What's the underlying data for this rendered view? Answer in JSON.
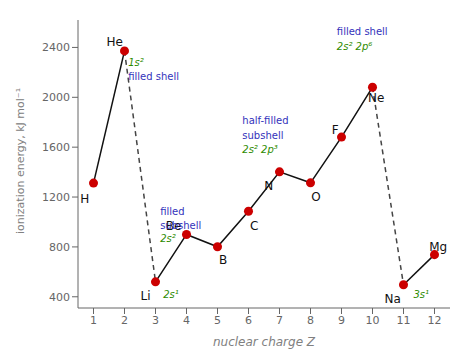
{
  "chart_data": {
    "type": "line",
    "x": [
      1,
      2,
      3,
      4,
      5,
      6,
      7,
      8,
      9,
      10,
      11,
      12
    ],
    "series": [
      {
        "type": "line",
        "line_style": "solid",
        "color": "#111111",
        "values": [
          1312,
          2372,
          null,
          null,
          null,
          null,
          null,
          null,
          null,
          null,
          null,
          null
        ]
      },
      {
        "type": "line",
        "line_style": "solid",
        "color": "#111111",
        "values": [
          null,
          null,
          520,
          900,
          801,
          1086,
          1402,
          1314,
          1681,
          2081,
          null,
          null
        ]
      },
      {
        "type": "line",
        "line_style": "solid",
        "color": "#111111",
        "values": [
          null,
          null,
          null,
          null,
          null,
          null,
          null,
          null,
          null,
          null,
          496,
          738
        ]
      },
      {
        "type": "line",
        "line_style": "dashed",
        "color": "#444444",
        "values": [
          null,
          2372,
          520,
          null,
          null,
          null,
          null,
          null,
          null,
          null,
          null,
          null
        ]
      },
      {
        "type": "line",
        "line_style": "dashed",
        "color": "#444444",
        "values": [
          null,
          null,
          null,
          null,
          null,
          null,
          null,
          null,
          null,
          2081,
          496,
          null
        ]
      },
      {
        "type": "scatter",
        "marker": "circle",
        "color": "#cc0000",
        "values": [
          1312,
          2372,
          520,
          900,
          801,
          1086,
          1402,
          1314,
          1681,
          2081,
          496,
          738
        ]
      }
    ],
    "xlabel": "nuclear charge Z",
    "ylabel": "ionization energy, kJ mol⁻¹",
    "xlim": [
      0.5,
      12.5
    ],
    "ylim": [
      310,
      2620
    ],
    "xticks": [
      1,
      2,
      3,
      4,
      5,
      6,
      7,
      8,
      9,
      10,
      11,
      12
    ],
    "yticks": [
      400,
      800,
      1200,
      1600,
      2000,
      2400
    ],
    "annotations": [
      {
        "text": "H",
        "x": 0.72,
        "y": 1182,
        "color": "#111111"
      },
      {
        "text": "He",
        "x": 1.68,
        "y": 2447,
        "color": "#111111"
      },
      {
        "text": "Li",
        "x": 2.68,
        "y": 405,
        "color": "#111111"
      },
      {
        "text": "Be",
        "x": 3.58,
        "y": 965,
        "color": "#111111"
      },
      {
        "text": "B",
        "x": 5.18,
        "y": 696,
        "color": "#111111"
      },
      {
        "text": "C",
        "x": 6.18,
        "y": 971,
        "color": "#111111"
      },
      {
        "text": "N",
        "x": 6.65,
        "y": 1292,
        "color": "#111111"
      },
      {
        "text": "O",
        "x": 8.18,
        "y": 1204,
        "color": "#111111"
      },
      {
        "text": "F",
        "x": 8.8,
        "y": 1741,
        "color": "#111111"
      },
      {
        "text": "Ne",
        "x": 10.12,
        "y": 1996,
        "color": "#111111"
      },
      {
        "text": "Na",
        "x": 10.65,
        "y": 381,
        "color": "#111111"
      },
      {
        "text": "Mg",
        "x": 12.12,
        "y": 803,
        "color": "#111111"
      },
      {
        "text": "1s²",
        "x": 2.12,
        "y": 2310,
        "color": "#2e8b00"
      },
      {
        "text": "filled shell",
        "x": 2.12,
        "y": 2195,
        "color": "#3333bb"
      },
      {
        "text": "filled",
        "x": 3.15,
        "y": 1115,
        "color": "#3333bb"
      },
      {
        "text": "subshell",
        "x": 3.15,
        "y": 1005,
        "color": "#3333bb"
      },
      {
        "text": "2s²",
        "x": 3.15,
        "y": 900,
        "color": "#2e8b00"
      },
      {
        "text": "half-filled",
        "x": 5.8,
        "y": 1840,
        "color": "#3333bb"
      },
      {
        "text": "subshell",
        "x": 5.8,
        "y": 1720,
        "color": "#3333bb"
      },
      {
        "text": "2s² 2p³",
        "x": 5.8,
        "y": 1610,
        "color": "#2e8b00"
      },
      {
        "text": "filled shell",
        "x": 8.85,
        "y": 2560,
        "color": "#3333bb"
      },
      {
        "text": "2s² 2p⁶",
        "x": 8.85,
        "y": 2440,
        "color": "#2e8b00"
      },
      {
        "text": "3s¹",
        "x": 11.32,
        "y": 445,
        "color": "#2e8b00"
      },
      {
        "text": "2s¹",
        "x": 3.25,
        "y": 448,
        "color": "#2e8b00"
      }
    ]
  }
}
